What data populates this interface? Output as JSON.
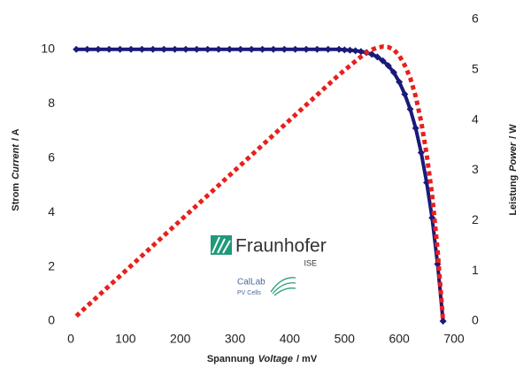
{
  "chart_data": {
    "type": "line",
    "ylabel": [
      "Strom",
      "Current",
      "/ A"
    ],
    "y2label": [
      "Leistung",
      "Power",
      "/ W"
    ],
    "xlabel": [
      "Spannung",
      "Voltage",
      "/ mV"
    ],
    "logos": {
      "institute": "Fraunhofer",
      "unit": "ISE",
      "lab": "CalLab",
      "lab_sub": "PV Cells"
    },
    "x": [
      10,
      30,
      50,
      70,
      90,
      110,
      130,
      150,
      170,
      190,
      210,
      230,
      250,
      270,
      290,
      310,
      330,
      350,
      370,
      390,
      410,
      430,
      450,
      470,
      490,
      500,
      510,
      520,
      530,
      540,
      550,
      560,
      570,
      580,
      590,
      600,
      610,
      620,
      630,
      640,
      650,
      660,
      670,
      680
    ],
    "series": [
      {
        "name": "Current",
        "color": "#1a1a7a",
        "axis": "y",
        "values": [
          10,
          10,
          10,
          10,
          10,
          10,
          10,
          10,
          10,
          10,
          10,
          10,
          10,
          10,
          10,
          10,
          10,
          10,
          10,
          10,
          10,
          10,
          10,
          10,
          10,
          9.98,
          9.97,
          9.95,
          9.92,
          9.88,
          9.82,
          9.72,
          9.58,
          9.4,
          9.15,
          8.8,
          8.35,
          7.8,
          7.1,
          6.2,
          5.1,
          3.8,
          2.1,
          0
        ]
      },
      {
        "name": "Power",
        "color": "#e8201c",
        "axis": "y2",
        "values": [
          0.1,
          0.3,
          0.5,
          0.7,
          0.9,
          1.1,
          1.3,
          1.5,
          1.7,
          1.9,
          2.1,
          2.3,
          2.5,
          2.7,
          2.9,
          3.1,
          3.3,
          3.5,
          3.7,
          3.9,
          4.1,
          4.3,
          4.5,
          4.7,
          4.9,
          4.99,
          5.08,
          5.17,
          5.26,
          5.34,
          5.4,
          5.44,
          5.46,
          5.45,
          5.4,
          5.28,
          5.09,
          4.84,
          4.47,
          3.97,
          3.32,
          2.51,
          1.41,
          0
        ]
      }
    ],
    "xlim": [
      0,
      700
    ],
    "xticks": [
      0,
      100,
      200,
      300,
      400,
      500,
      600,
      700
    ],
    "ylim": [
      0,
      11.1
    ],
    "yticks": [
      0,
      2,
      4,
      6,
      8,
      10
    ],
    "y2lim": [
      0,
      6
    ],
    "y2ticks": [
      0,
      1,
      2,
      3,
      4,
      5,
      6
    ],
    "grid": false
  }
}
